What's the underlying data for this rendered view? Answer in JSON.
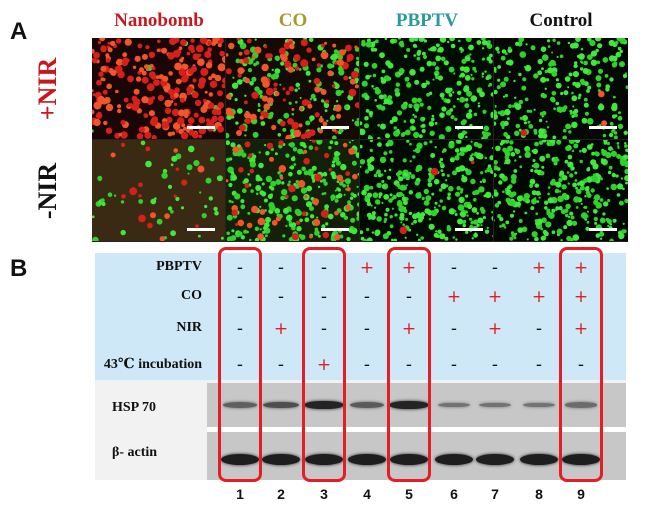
{
  "panel_a": {
    "letter": "A",
    "columns": [
      {
        "title": "Nanobomb",
        "color": "#c8181e"
      },
      {
        "title": "CO",
        "color": "#a89a2a"
      },
      {
        "title": "PBPTV",
        "color": "#2a9a9a"
      },
      {
        "title": "Control",
        "color": "#111111"
      }
    ],
    "rows": [
      {
        "label": "+NIR",
        "color": "#c8181e"
      },
      {
        "label": "-NIR",
        "color": "#111111"
      }
    ]
  },
  "panel_b": {
    "letter": "B",
    "conditions": [
      {
        "label": "PBPTV",
        "signs": [
          "-",
          "-",
          "-",
          "+",
          "+",
          "-",
          "-",
          "+",
          "+"
        ]
      },
      {
        "label": "CO",
        "signs": [
          "-",
          "-",
          "-",
          "-",
          "-",
          "+",
          "+",
          "+",
          "+"
        ]
      },
      {
        "label": "NIR",
        "signs": [
          "-",
          "+",
          "-",
          "-",
          "+",
          "-",
          "+",
          "-",
          "+"
        ]
      },
      {
        "label": "43℃ incubation",
        "signs": [
          "-",
          "-",
          "+",
          "-",
          "-",
          "-",
          "-",
          "-",
          "-"
        ]
      }
    ],
    "blots": [
      {
        "label": "HSP 70",
        "intensity": [
          0.45,
          0.6,
          0.95,
          0.5,
          0.95,
          0.3,
          0.3,
          0.3,
          0.35
        ]
      },
      {
        "label": "β- actin",
        "intensity": [
          1,
          1,
          1,
          1,
          1,
          1,
          1,
          1,
          1
        ]
      }
    ],
    "lanes": [
      "1",
      "2",
      "3",
      "4",
      "5",
      "6",
      "7",
      "8",
      "9"
    ],
    "highlighted_lanes": [
      "1",
      "3",
      "5",
      "9"
    ],
    "highlight_color": "#e51e25"
  }
}
